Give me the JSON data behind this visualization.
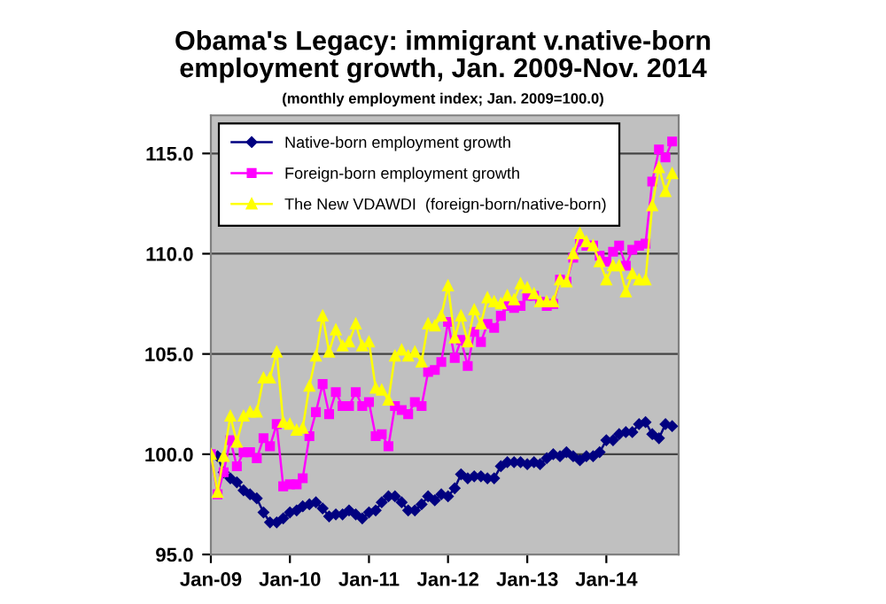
{
  "chart_data": {
    "type": "line",
    "title": "Obama's Legacy: immigrant v.native-born\nemployment growth, Jan. 2009-Nov. 2014",
    "subtitle": "(monthly employment index; Jan. 2009=100.0)",
    "x": [
      "2009-01",
      "2009-02",
      "2009-03",
      "2009-04",
      "2009-05",
      "2009-06",
      "2009-07",
      "2009-08",
      "2009-09",
      "2009-10",
      "2009-11",
      "2009-12",
      "2010-01",
      "2010-02",
      "2010-03",
      "2010-04",
      "2010-05",
      "2010-06",
      "2010-07",
      "2010-08",
      "2010-09",
      "2010-10",
      "2010-11",
      "2010-12",
      "2011-01",
      "2011-02",
      "2011-03",
      "2011-04",
      "2011-05",
      "2011-06",
      "2011-07",
      "2011-08",
      "2011-09",
      "2011-10",
      "2011-11",
      "2011-12",
      "2012-01",
      "2012-02",
      "2012-03",
      "2012-04",
      "2012-05",
      "2012-06",
      "2012-07",
      "2012-08",
      "2012-09",
      "2012-10",
      "2012-11",
      "2012-12",
      "2013-01",
      "2013-02",
      "2013-03",
      "2013-04",
      "2013-05",
      "2013-06",
      "2013-07",
      "2013-08",
      "2013-09",
      "2013-10",
      "2013-11",
      "2013-12",
      "2014-01",
      "2014-02",
      "2014-03",
      "2014-04",
      "2014-05",
      "2014-06",
      "2014-07",
      "2014-08",
      "2014-09",
      "2014-10",
      "2014-11"
    ],
    "series": [
      {
        "name": "Native-born employment growth",
        "color": "#000080",
        "marker": "diamond",
        "values": [
          100.0,
          99.9,
          99.1,
          98.8,
          98.6,
          98.2,
          98.0,
          97.8,
          97.1,
          96.6,
          96.6,
          96.8,
          97.1,
          97.2,
          97.4,
          97.5,
          97.6,
          97.3,
          96.9,
          97.0,
          97.0,
          97.2,
          97.0,
          96.8,
          97.1,
          97.2,
          97.6,
          97.9,
          97.9,
          97.6,
          97.2,
          97.2,
          97.5,
          97.9,
          97.7,
          98.0,
          97.9,
          98.3,
          99.0,
          98.8,
          98.9,
          98.9,
          98.8,
          98.8,
          99.4,
          99.6,
          99.6,
          99.6,
          99.5,
          99.6,
          99.5,
          99.8,
          100.0,
          99.9,
          100.1,
          99.9,
          99.7,
          99.9,
          99.9,
          100.1,
          100.7,
          100.7,
          101.0,
          101.1,
          101.1,
          101.5,
          101.6,
          101.0,
          100.8,
          101.5,
          101.4
        ]
      },
      {
        "name": "Foreign-born employment growth",
        "color": "#ff00ff",
        "marker": "square",
        "values": [
          100.0,
          98.0,
          99.1,
          100.7,
          99.4,
          100.1,
          100.1,
          99.8,
          100.8,
          100.4,
          101.5,
          98.4,
          98.5,
          98.5,
          98.8,
          100.9,
          102.1,
          103.5,
          102.0,
          103.1,
          102.4,
          102.4,
          103.1,
          102.4,
          102.6,
          100.9,
          101.0,
          100.4,
          102.4,
          102.2,
          102.0,
          102.6,
          102.4,
          104.1,
          104.2,
          104.6,
          106.6,
          104.8,
          105.7,
          104.4,
          106.1,
          105.6,
          106.5,
          106.3,
          106.9,
          107.4,
          107.3,
          107.4,
          107.9,
          107.9,
          107.6,
          107.4,
          107.5,
          108.7,
          108.6,
          109.8,
          110.6,
          110.4,
          110.4,
          109.9,
          109.6,
          110.1,
          110.4,
          109.4,
          110.2,
          110.4,
          110.5,
          113.6,
          115.2,
          114.8,
          115.6
        ]
      },
      {
        "name": "The New VDAWDI  (foreign-born/native-born)",
        "color": "#ffff00",
        "marker": "triangle",
        "values": [
          100.0,
          98.1,
          99.9,
          101.9,
          100.6,
          101.9,
          102.1,
          102.1,
          103.8,
          103.8,
          105.1,
          101.6,
          101.5,
          101.2,
          101.3,
          103.4,
          104.9,
          106.9,
          105.1,
          106.2,
          105.4,
          105.6,
          106.5,
          105.4,
          105.6,
          103.3,
          103.2,
          102.7,
          104.9,
          105.2,
          104.9,
          105.1,
          104.6,
          106.5,
          106.4,
          106.9,
          108.4,
          105.8,
          106.9,
          105.6,
          107.2,
          106.5,
          107.8,
          107.6,
          107.5,
          107.9,
          107.7,
          108.5,
          108.3,
          108.0,
          107.6,
          107.6,
          107.6,
          108.7,
          108.6,
          110.0,
          111.0,
          110.6,
          110.4,
          109.6,
          108.7,
          109.4,
          109.4,
          108.1,
          109.0,
          108.7,
          108.7,
          112.4,
          114.3,
          113.1,
          114.0
        ]
      }
    ],
    "xlim": [
      "2009-01",
      "2014-12"
    ],
    "xticks": [
      {
        "value": "2009-01",
        "label": "Jan-09"
      },
      {
        "value": "2010-01",
        "label": "Jan-10"
      },
      {
        "value": "2011-01",
        "label": "Jan-11"
      },
      {
        "value": "2012-01",
        "label": "Jan-12"
      },
      {
        "value": "2013-01",
        "label": "Jan-13"
      },
      {
        "value": "2014-01",
        "label": "Jan-14"
      }
    ],
    "ylim": [
      95,
      116.9
    ],
    "yticks": [
      {
        "value": 95,
        "label": "95.0"
      },
      {
        "value": 100,
        "label": "100.0"
      },
      {
        "value": 105,
        "label": "105.0"
      },
      {
        "value": 110,
        "label": "110.0"
      },
      {
        "value": 115,
        "label": "115.0"
      }
    ],
    "grid": "y",
    "legend": "top left",
    "line_style": "solid"
  }
}
